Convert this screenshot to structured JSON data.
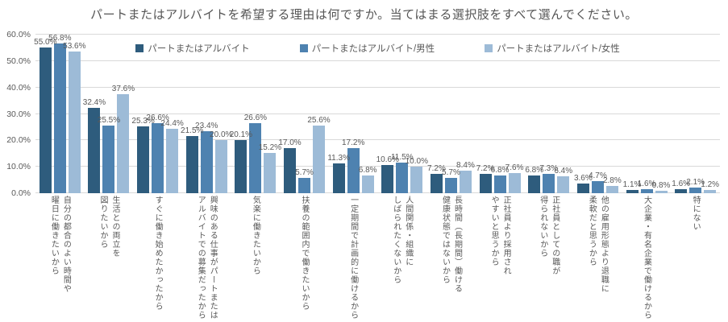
{
  "title": "パートまたはアルバイトを希望する理由は何ですか。当てはまる選択肢をすべて選んでください。",
  "chart_data": {
    "type": "bar",
    "title": "パートまたはアルバイトを希望する理由は何ですか。当てはまる選択肢をすべて選んでください。",
    "categories": [
      "自分の都合のよい時間や\n曜日に働きたいから",
      "生活との両立を\n図りたいから",
      "すぐに働き始めたかったから",
      "興味のある仕事がパートまたは\nアルバイトでの募集だったから",
      "気楽に働きたいから",
      "扶養の範囲内で働きたいから",
      "一定期間で計画的に働けるから",
      "人間関係・組織に\nしばられたくないから",
      "長時間（長期間）働ける\n健康状態ではないから",
      "正社員より採用され\nやすいと思うから",
      "正社員としての職が\n得られないから",
      "他の雇用形態より退職に\n柔軟だと思うから",
      "大企業・有名企業で働けるから",
      "特にない"
    ],
    "series": [
      {
        "name": "パートまたはアルバイト",
        "color": "#2E5C7D",
        "values": [
          55.0,
          32.4,
          25.3,
          21.5,
          20.1,
          17.0,
          11.3,
          10.6,
          7.2,
          7.2,
          6.8,
          3.6,
          1.1,
          1.6
        ]
      },
      {
        "name": "パートまたはアルバイト/男性",
        "color": "#4E82B0",
        "values": [
          56.8,
          25.5,
          26.6,
          23.4,
          26.6,
          5.7,
          17.2,
          11.5,
          5.7,
          6.8,
          7.3,
          4.7,
          1.6,
          2.1
        ]
      },
      {
        "name": "パートまたはアルバイト/女性",
        "color": "#9DBBD7",
        "values": [
          53.6,
          37.6,
          24.4,
          20.0,
          15.2,
          25.6,
          6.8,
          10.0,
          8.4,
          7.6,
          6.4,
          2.8,
          0.8,
          1.2
        ]
      }
    ],
    "xlabel": "",
    "ylabel": "",
    "ylim": [
      0,
      60
    ],
    "ytick_step": 10,
    "value_format": "one_decimal_percent",
    "grid": true,
    "legend_position": "top-center"
  },
  "colors": {
    "gridline": "#d9d9d9",
    "text": "#595959"
  }
}
